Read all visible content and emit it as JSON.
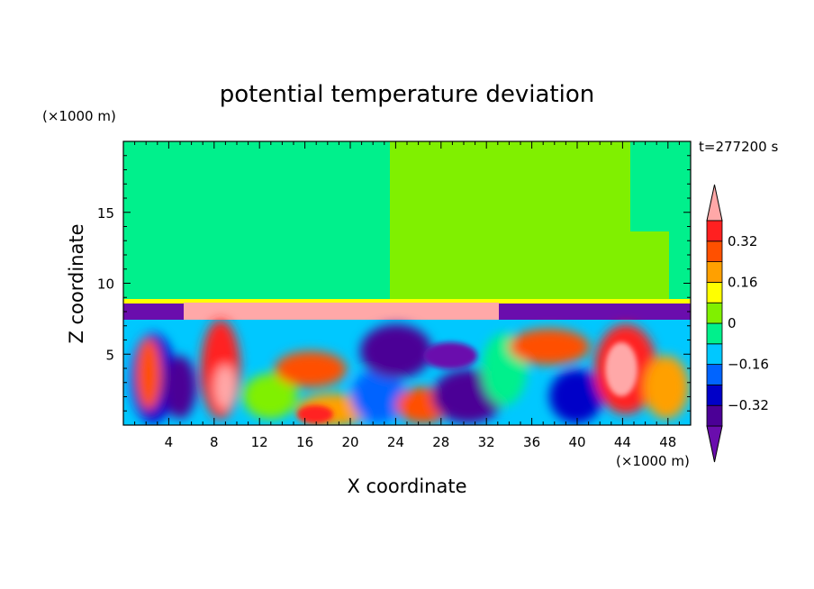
{
  "chart_data": {
    "type": "heatmap",
    "title": "potential temperature deviation",
    "time_label": "t=277200 s",
    "xlabel": "X coordinate",
    "ylabel": "Z coordinate",
    "x_unit": "(×1000 m)",
    "y_unit": "(×1000 m)",
    "xlim": [
      0,
      50
    ],
    "ylim": [
      0,
      20
    ],
    "x_ticks": [
      4,
      8,
      12,
      16,
      20,
      24,
      28,
      32,
      36,
      40,
      44,
      48
    ],
    "y_ticks": [
      5,
      10,
      15
    ],
    "colorbar": {
      "labels": [
        "0.32",
        "0.16",
        "0",
        "-0.16",
        "-0.32"
      ],
      "label_values": [
        0.32,
        0.16,
        0,
        -0.16,
        -0.32
      ],
      "levels": [
        -0.4,
        -0.32,
        -0.24,
        -0.16,
        -0.08,
        0,
        0.08,
        0.16,
        0.24,
        0.32,
        0.4
      ],
      "colors": [
        "#6a0dad",
        "#4b0096",
        "#0000c8",
        "#0064ff",
        "#00c8ff",
        "#00f08c",
        "#80f000",
        "#ffff00",
        "#ffa000",
        "#ff5000",
        "#ff2020",
        "#ffa8a8"
      ],
      "extend": "both"
    }
  }
}
